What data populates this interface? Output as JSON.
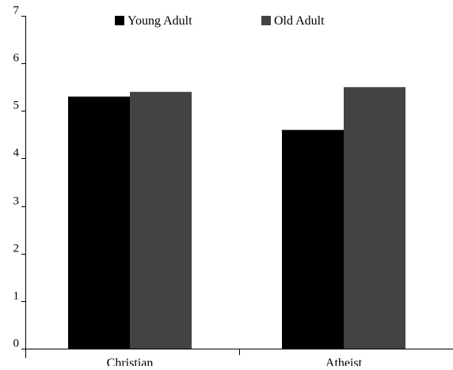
{
  "chart_data": {
    "type": "bar",
    "categories": [
      "Christian",
      "Atheist"
    ],
    "series": [
      {
        "name": "Young Adult",
        "values": [
          5.3,
          4.6
        ],
        "color": "#000000"
      },
      {
        "name": "Old Adult",
        "values": [
          5.4,
          5.5
        ],
        "color": "#434343"
      }
    ],
    "title": "",
    "xlabel": "",
    "ylabel": "",
    "ylim": [
      0,
      7
    ],
    "yticks": [
      "0",
      "1",
      "2",
      "3",
      "4",
      "5",
      "6",
      "7"
    ],
    "grid": false,
    "legend_position": "top-center"
  }
}
